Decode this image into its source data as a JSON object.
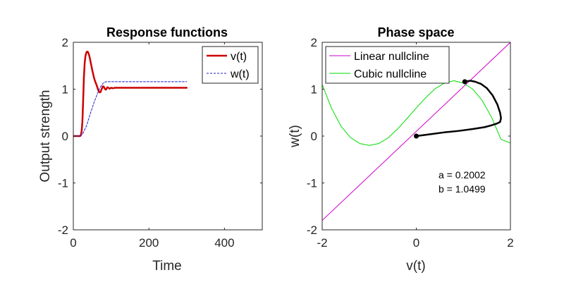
{
  "chart_data": [
    {
      "type": "line",
      "title": "Response functions",
      "xlabel": "Time",
      "ylabel": "Output strength",
      "xlim": [
        0,
        500
      ],
      "ylim": [
        -2,
        2
      ],
      "xticks": [
        0,
        200,
        400
      ],
      "yticks": [
        -2,
        -1,
        0,
        1,
        2
      ],
      "legend_position": "top-right",
      "series": [
        {
          "name": "v(t)",
          "color": "#cc0000",
          "style": "solid",
          "x": [
            0,
            18,
            20,
            22,
            24,
            26,
            28,
            30,
            32,
            34,
            36,
            38,
            40,
            42,
            44,
            46,
            48,
            50,
            52,
            54,
            56,
            58,
            60,
            62,
            64,
            66,
            68,
            70,
            72,
            74,
            76,
            78,
            80,
            82,
            84,
            86,
            88,
            90,
            93,
            96,
            100,
            105,
            110,
            120,
            150,
            200,
            250,
            300
          ],
          "y": [
            0,
            0,
            0.02,
            0.1,
            0.3,
            0.75,
            1.25,
            1.55,
            1.7,
            1.77,
            1.8,
            1.8,
            1.77,
            1.72,
            1.65,
            1.57,
            1.49,
            1.41,
            1.34,
            1.27,
            1.21,
            1.16,
            1.12,
            1.08,
            1.03,
            0.98,
            0.95,
            0.93,
            0.94,
            0.98,
            1.02,
            1.06,
            1.06,
            1.03,
            1.0,
            0.99,
            1.01,
            1.04,
            1.03,
            1.01,
            1.03,
            1.02,
            1.03,
            1.03,
            1.03,
            1.03,
            1.03,
            1.03
          ]
        },
        {
          "name": "w(t)",
          "color": "#1f1fcc",
          "style": "dashed",
          "x": [
            0,
            18,
            25,
            35,
            45,
            55,
            65,
            72,
            78,
            82,
            90,
            300
          ],
          "y": [
            0,
            0,
            0.05,
            0.22,
            0.48,
            0.72,
            0.93,
            1.05,
            1.12,
            1.15,
            1.16,
            1.16
          ]
        }
      ]
    },
    {
      "type": "line",
      "title": "Phase space",
      "xlabel": "v(t)",
      "ylabel": "w(t)",
      "xlim": [
        -2,
        2
      ],
      "ylim": [
        -2,
        2
      ],
      "xticks": [
        -2,
        0,
        2
      ],
      "yticks": [
        -2,
        -1,
        0,
        1,
        2
      ],
      "legend_position": "top-left",
      "series": [
        {
          "name": "Linear nullcline",
          "color": "#cc00cc",
          "style": "solid",
          "x": [
            -2,
            2
          ],
          "y": [
            -1.7998,
            2.0
          ]
        },
        {
          "name": "Cubic nullcline",
          "color": "#00dd00",
          "style": "solid",
          "x": [
            -2.0,
            -1.8,
            -1.6,
            -1.4,
            -1.2,
            -1.0,
            -0.8,
            -0.6,
            -0.4,
            -0.2,
            0.0,
            0.2,
            0.4,
            0.6,
            0.8,
            1.0,
            1.2,
            1.4,
            1.6,
            1.8,
            2.0
          ],
          "y": [
            1.1,
            0.59,
            0.21,
            -0.03,
            -0.16,
            -0.2,
            -0.16,
            -0.04,
            0.15,
            0.37,
            0.6,
            0.82,
            1.01,
            1.13,
            1.18,
            1.13,
            1.0,
            0.76,
            0.4,
            -0.07,
            -0.15
          ]
        },
        {
          "name": "",
          "color": "#000000",
          "style": "solid",
          "x": [
            0.0,
            0.3,
            0.6,
            0.9,
            1.2,
            1.45,
            1.6,
            1.72,
            1.78,
            1.8,
            1.78,
            1.72,
            1.62,
            1.5,
            1.38,
            1.25,
            1.15,
            1.08,
            1.03
          ],
          "y": [
            0.0,
            0.04,
            0.08,
            0.11,
            0.15,
            0.19,
            0.23,
            0.27,
            0.3,
            0.38,
            0.5,
            0.68,
            0.87,
            1.02,
            1.11,
            1.16,
            1.18,
            1.17,
            1.16
          ]
        }
      ],
      "markers": [
        {
          "x": 0.0,
          "y": 0.0
        },
        {
          "x": 1.03,
          "y": 1.16
        }
      ],
      "annotations": [
        "a = 0.2002",
        "b = 1.0499"
      ]
    }
  ]
}
